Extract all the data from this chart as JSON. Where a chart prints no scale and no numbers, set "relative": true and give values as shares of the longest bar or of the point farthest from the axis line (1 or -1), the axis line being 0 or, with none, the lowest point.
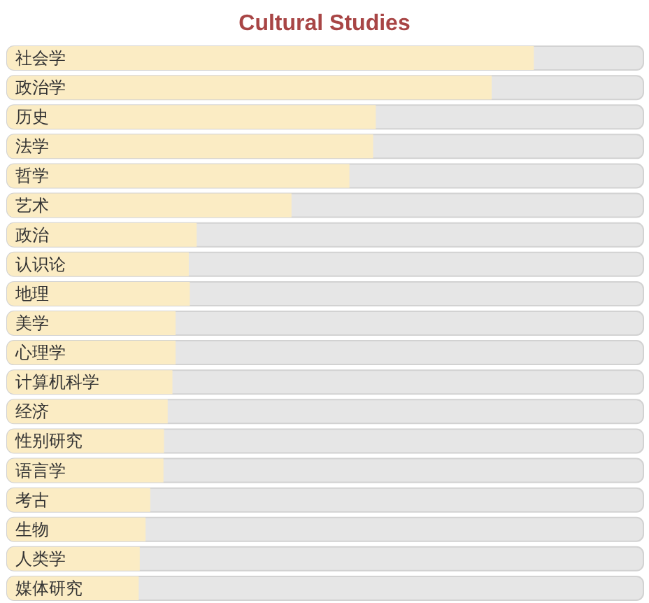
{
  "chart_data": {
    "type": "bar",
    "orientation": "horizontal",
    "relative": true,
    "title": "Cultural Studies",
    "categories": [
      "社会学",
      "政治学",
      "历史",
      "法学",
      "哲学",
      "艺术",
      "政治",
      "认识论",
      "地理",
      "美学",
      "心理学",
      "计算机科学",
      "经济",
      "性别研究",
      "语言学",
      "考古",
      "生物",
      "人类学",
      "媒体研究"
    ],
    "values": [
      1,
      0.92,
      0.7,
      0.695,
      0.65,
      0.54,
      0.36,
      0.345,
      0.347,
      0.32,
      0.32,
      0.314,
      0.305,
      0.298,
      0.297,
      0.272,
      0.263,
      0.252,
      0.25
    ],
    "color": "#fbecc4"
  }
}
